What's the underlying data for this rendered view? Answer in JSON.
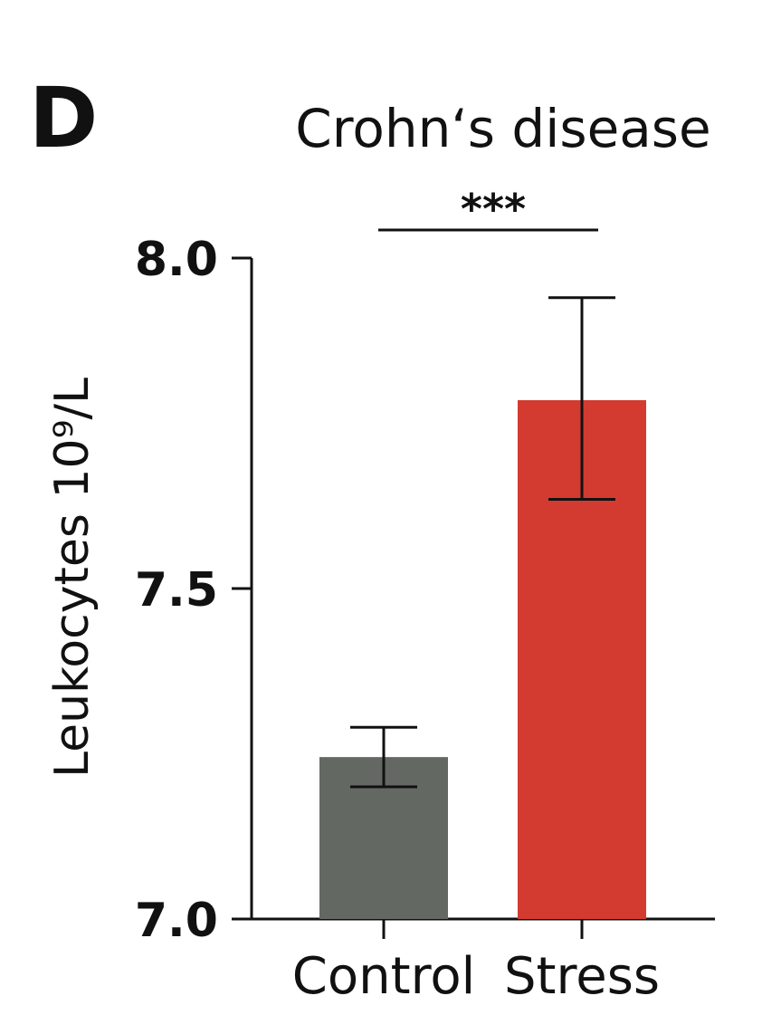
{
  "panel_label": "D",
  "chart_data": {
    "type": "bar",
    "title": "Crohn‘s disease",
    "ylabel": "Leukocytes 10⁹/L",
    "xlabel": "",
    "categories": [
      "Control",
      "Stress"
    ],
    "values": [
      7.245,
      7.785
    ],
    "error": [
      {
        "low": 7.2,
        "high": 7.29
      },
      {
        "low": 7.635,
        "high": 7.94
      }
    ],
    "colors": [
      "#636862",
      "#d33b31"
    ],
    "ylim": [
      7.0,
      8.0
    ],
    "yticks": [
      "8.0",
      "7.5",
      "7.0"
    ],
    "ytick_values": [
      8.0,
      7.5,
      7.0
    ],
    "significance": {
      "label": "***",
      "between": [
        "Control",
        "Stress"
      ]
    },
    "grid": false,
    "legend": "none"
  }
}
